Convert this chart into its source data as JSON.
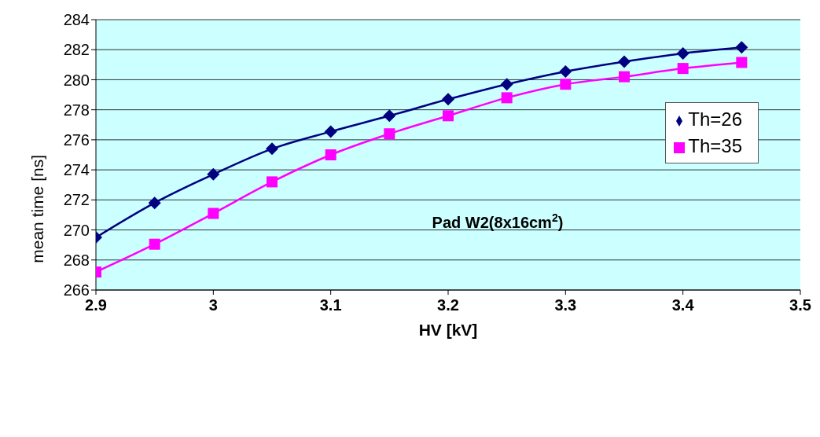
{
  "chart_data": {
    "type": "line",
    "xlabel": "HV [kV]",
    "ylabel": "mean time [ns]",
    "annotations": [
      "Pad W2(8x16cm$^{2}$)"
    ],
    "x": [
      2.9,
      2.95,
      3.0,
      3.05,
      3.1,
      3.15,
      3.2,
      3.25,
      3.3,
      3.35,
      3.4,
      3.45
    ],
    "series": [
      {
        "name": "Th=26",
        "color": "#000080",
        "marker": "diamond",
        "values": [
          269.5,
          271.8,
          273.7,
          275.4,
          276.55,
          277.6,
          278.7,
          279.7,
          280.55,
          281.2,
          281.75,
          282.15
        ]
      },
      {
        "name": "Th=35",
        "color": "#ff00ff",
        "marker": "square",
        "values": [
          267.2,
          269.05,
          271.1,
          273.2,
          275.0,
          276.4,
          277.6,
          278.8,
          279.7,
          280.2,
          280.75,
          281.15
        ]
      }
    ],
    "xlim": [
      2.9,
      3.5
    ],
    "xticks": [
      2.9,
      3,
      3.1,
      3.2,
      3.3,
      3.4,
      3.5
    ],
    "ylim": [
      266,
      284
    ],
    "yticks": [
      266,
      268,
      270,
      272,
      274,
      276,
      278,
      280,
      282,
      284
    ],
    "grid": "y",
    "legend": "top right",
    "line_style": "solid"
  }
}
